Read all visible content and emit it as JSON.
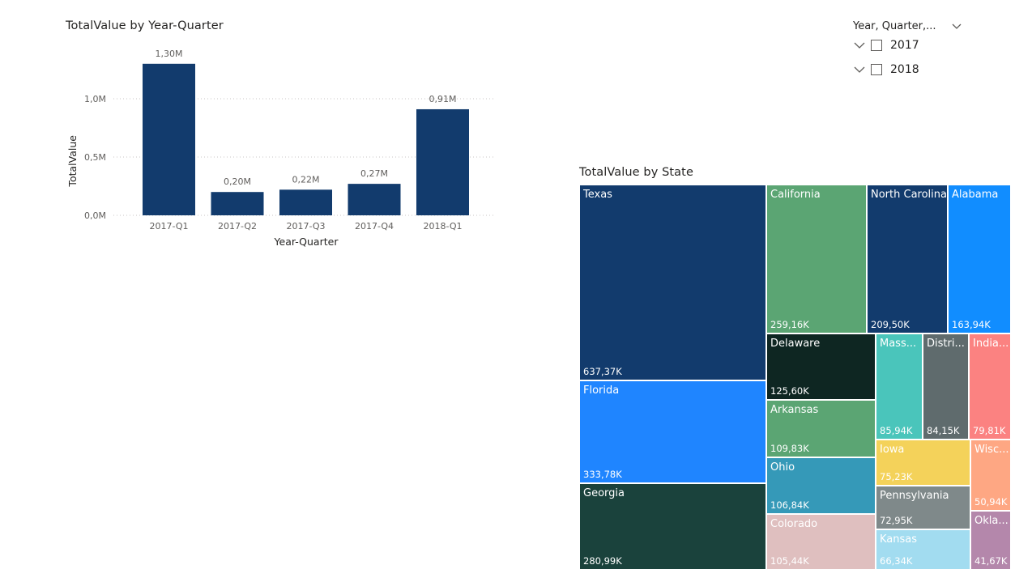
{
  "bar_chart": {
    "title": "TotalValue by Year-Quarter"
  },
  "treemap": {
    "title": "TotalValue by State"
  },
  "slicer": {
    "header": "Year, Quarter,...",
    "items": [
      {
        "label": "2017"
      },
      {
        "label": "2018"
      }
    ]
  },
  "chart_data": [
    {
      "type": "bar",
      "title": "TotalValue by Year-Quarter",
      "xlabel": "Year-Quarter",
      "ylabel": "TotalValue",
      "categories": [
        "2017-Q1",
        "2017-Q2",
        "2017-Q3",
        "2017-Q4",
        "2018-Q1"
      ],
      "values": [
        1.3,
        0.2,
        0.22,
        0.27,
        0.91
      ],
      "data_labels": [
        "1,30M",
        "0,20M",
        "0,22M",
        "0,27M",
        "0,91M"
      ],
      "yticks": [
        0,
        0.5,
        1.0
      ],
      "ytick_labels": [
        "0,0M",
        "0,5M",
        "1,0M"
      ],
      "ylim": [
        0,
        1.35
      ],
      "grid": true,
      "color": "#123b6d"
    },
    {
      "type": "treemap",
      "title": "TotalValue by State",
      "items": [
        {
          "name": "Texas",
          "label": "637,37K",
          "value": 637.37,
          "color": "#123b6d"
        },
        {
          "name": "California",
          "label": "259,16K",
          "value": 259.16,
          "color": "#5ba573"
        },
        {
          "name": "North Carolina",
          "label": "209,50K",
          "value": 209.5,
          "color": "#123b6d"
        },
        {
          "name": "Alabama",
          "label": "163,94K",
          "value": 163.94,
          "color": "#118dff"
        },
        {
          "name": "Delaware",
          "label": "125,60K",
          "value": 125.6,
          "color": "#0e2622"
        },
        {
          "name": "Mass...",
          "label": "85,94K",
          "value": 85.94,
          "color": "#4ac5bb"
        },
        {
          "name": "Distri...",
          "label": "84,15K",
          "value": 84.15,
          "color": "#5f6b6d"
        },
        {
          "name": "India...",
          "label": "79,81K",
          "value": 79.81,
          "color": "#fb8281"
        },
        {
          "name": "Florida",
          "label": "333,78K",
          "value": 333.78,
          "color": "#1f85ff"
        },
        {
          "name": "Arkansas",
          "label": "109,83K",
          "value": 109.83,
          "color": "#5ba573"
        },
        {
          "name": "Iowa",
          "label": "75,23K",
          "value": 75.23,
          "color": "#f4d25a"
        },
        {
          "name": "Wisc...",
          "label": "50,94K",
          "value": 50.94,
          "color": "#fea783"
        },
        {
          "name": "Ohio",
          "label": "106,84K",
          "value": 106.84,
          "color": "#3599b8"
        },
        {
          "name": "Pennsylvania",
          "label": "72,95K",
          "value": 72.95,
          "color": "#7f898a"
        },
        {
          "name": "Georgia",
          "label": "280,99K",
          "value": 280.99,
          "color": "#1a423c"
        },
        {
          "name": "Colorado",
          "label": "105,44K",
          "value": 105.44,
          "color": "#dfbfbf"
        },
        {
          "name": "Kansas",
          "label": "66,34K",
          "value": 66.34,
          "color": "#a2dcf0"
        },
        {
          "name": "Okla...",
          "label": "41,67K",
          "value": 41.67,
          "color": "#b487ab"
        }
      ]
    }
  ]
}
